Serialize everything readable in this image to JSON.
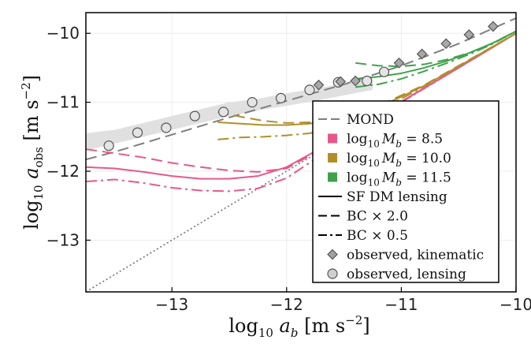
{
  "chart_data": {
    "type": "line",
    "xlabel": "log10 a_b [m s^-2]",
    "ylabel": "log10 a_obs [m s^-2]",
    "xlim": [
      -13.75,
      -10.0
    ],
    "ylim": [
      -13.75,
      -9.7
    ],
    "xticks": [
      -13,
      -12,
      -11,
      -10
    ],
    "xtick_labels": [
      "−13",
      "−12",
      "−11",
      "−10"
    ],
    "yticks": [
      -13,
      -12,
      -11,
      -10
    ],
    "ytick_labels": [
      "−13",
      "−12",
      "−11",
      "−10"
    ],
    "grid": true,
    "legend_position": "lower-right",
    "colors": {
      "mond": "#7f7f7f",
      "m85": "#e8578b",
      "m100": "#b08f2a",
      "m115": "#3fa24a",
      "one_to_one": "#808080",
      "band": "#e0e0e0"
    },
    "legend": [
      {
        "key": "mond",
        "style": "dash",
        "color": "#7f7f7f",
        "label": "MOND"
      },
      {
        "key": "m85",
        "style": "square",
        "color": "#e8578b",
        "label": "log10 M_b = 8.5",
        "prefix": "log",
        "sub": "10",
        "var": "M",
        "var_sub": "b",
        "value": " = 8.5"
      },
      {
        "key": "m100",
        "style": "square",
        "color": "#b08f2a",
        "label": "log10 M_b = 10.0",
        "prefix": "log",
        "sub": "10",
        "var": "M",
        "var_sub": "b",
        "value": " = 10.0"
      },
      {
        "key": "m115",
        "style": "square",
        "color": "#3fa24a",
        "label": "log10 M_b = 11.5",
        "prefix": "log",
        "sub": "10",
        "var": "M",
        "var_sub": "b",
        "value": " = 11.5"
      },
      {
        "key": "sf",
        "style": "solid",
        "color": "#000000",
        "label": "SF DM lensing"
      },
      {
        "key": "bc2",
        "style": "dash",
        "color": "#000000",
        "label": "BC × 2.0"
      },
      {
        "key": "bc05",
        "style": "dashdot",
        "color": "#000000",
        "label": "BC × 0.5"
      },
      {
        "key": "kin",
        "style": "diamond",
        "color": "#a0a0a0",
        "label": "observed, kinematic"
      },
      {
        "key": "lens",
        "style": "circle",
        "color": "#d0d0d0",
        "label": "observed, lensing"
      }
    ],
    "one_to_one": {
      "x": [
        -13.75,
        -10.0
      ],
      "y": [
        -13.75,
        -10.0
      ]
    },
    "mond": {
      "x": [
        -13.75,
        -13.5,
        -13.0,
        -12.5,
        -12.0,
        -11.5,
        -11.0,
        -10.5,
        -10.0
      ],
      "y": [
        -11.83,
        -11.72,
        -11.47,
        -11.22,
        -10.98,
        -10.74,
        -10.47,
        -10.15,
        -9.78
      ]
    },
    "lensing_band": {
      "x": [
        -13.75,
        -13.5,
        -13.25,
        -13.0,
        -12.75,
        -12.5,
        -12.25,
        -12.0,
        -11.75,
        -11.5,
        -11.25
      ],
      "upper": [
        -11.45,
        -11.4,
        -11.3,
        -11.2,
        -11.1,
        -11.0,
        -10.95,
        -10.87,
        -10.8,
        -10.73,
        -10.65
      ],
      "lower": [
        -11.7,
        -11.6,
        -11.5,
        -11.4,
        -11.3,
        -11.2,
        -11.12,
        -11.05,
        -10.98,
        -10.9,
        -10.82
      ]
    },
    "series": [
      {
        "name": "log10 M_b = 8.5, SF DM lensing",
        "color_key": "m85",
        "style": "solid",
        "x": [
          -13.75,
          -13.5,
          -13.25,
          -13.0,
          -12.75,
          -12.5,
          -12.25,
          -12.0,
          -11.75,
          -11.5,
          -11.25,
          -11.0,
          -10.5,
          -10.0
        ],
        "y": [
          -11.94,
          -11.96,
          -12.01,
          -12.07,
          -12.11,
          -12.11,
          -12.07,
          -11.94,
          -11.71,
          -11.46,
          -11.23,
          -10.99,
          -10.5,
          -10.0
        ]
      },
      {
        "name": "log10 M_b = 8.5, BC × 2.0",
        "color_key": "m85",
        "style": "dash",
        "x": [
          -13.75,
          -13.5,
          -13.25,
          -13.0,
          -12.75,
          -12.5,
          -12.25,
          -12.0,
          -11.75,
          -11.5,
          -11.25,
          -11.0,
          -10.5,
          -10.0
        ],
        "y": [
          -11.68,
          -11.74,
          -11.8,
          -11.88,
          -11.94,
          -11.99,
          -12.01,
          -11.96,
          -11.73,
          -11.47,
          -11.23,
          -10.99,
          -10.5,
          -10.0
        ]
      },
      {
        "name": "log10 M_b = 8.5, BC × 0.5",
        "color_key": "m85",
        "style": "dashdot",
        "x": [
          -13.75,
          -13.5,
          -13.25,
          -13.0,
          -12.75,
          -12.5,
          -12.25,
          -12.0,
          -11.75,
          -11.5,
          -11.25,
          -11.0,
          -10.5,
          -10.0
        ],
        "y": [
          -12.15,
          -12.12,
          -12.17,
          -12.24,
          -12.28,
          -12.29,
          -12.25,
          -12.1,
          -11.82,
          -11.52,
          -11.26,
          -11.0,
          -10.5,
          -10.0
        ]
      },
      {
        "name": "log10 M_b = 10.0, SF DM lensing",
        "color_key": "m100",
        "style": "solid",
        "x": [
          -12.6,
          -12.4,
          -12.2,
          -12.0,
          -11.8,
          -11.6,
          -11.4,
          -11.2,
          -11.0,
          -10.8,
          -10.5,
          -10.0
        ],
        "y": [
          -11.29,
          -11.31,
          -11.33,
          -11.33,
          -11.31,
          -11.26,
          -11.17,
          -11.07,
          -10.92,
          -10.76,
          -10.48,
          -10.0
        ]
      },
      {
        "name": "log10 M_b = 10.0, BC × 2.0",
        "color_key": "m100",
        "style": "dash",
        "x": [
          -12.6,
          -12.4,
          -12.2,
          -12.0,
          -11.8,
          -11.6,
          -11.4,
          -11.2,
          -11.0,
          -10.8,
          -10.5,
          -10.0
        ],
        "y": [
          -11.14,
          -11.21,
          -11.27,
          -11.3,
          -11.29,
          -11.24,
          -11.15,
          -11.05,
          -10.9,
          -10.75,
          -10.47,
          -10.0
        ]
      },
      {
        "name": "log10 M_b = 10.0, BC × 0.5",
        "color_key": "m100",
        "style": "dashdot",
        "x": [
          -12.6,
          -12.4,
          -12.2,
          -12.0,
          -11.8,
          -11.6,
          -11.4,
          -11.2,
          -11.0,
          -10.8,
          -10.5,
          -10.0
        ],
        "y": [
          -11.54,
          -11.51,
          -11.5,
          -11.48,
          -11.45,
          -11.38,
          -11.26,
          -11.12,
          -10.95,
          -10.77,
          -10.48,
          -10.0
        ]
      },
      {
        "name": "log10 M_b = 11.5, SF DM lensing",
        "color_key": "m115",
        "style": "solid",
        "x": [
          -11.4,
          -11.2,
          -11.0,
          -10.8,
          -10.6,
          -10.4,
          -10.2,
          -10.0
        ],
        "y": [
          -10.66,
          -10.63,
          -10.58,
          -10.5,
          -10.4,
          -10.28,
          -10.14,
          -9.97
        ]
      },
      {
        "name": "log10 M_b = 11.5, BC × 2.0",
        "color_key": "m115",
        "style": "dash",
        "x": [
          -11.4,
          -11.2,
          -11.0,
          -10.8,
          -10.6,
          -10.4,
          -10.2,
          -10.0
        ],
        "y": [
          -10.43,
          -10.47,
          -10.48,
          -10.45,
          -10.38,
          -10.28,
          -10.14,
          -9.97
        ]
      },
      {
        "name": "log10 M_b = 11.5, BC × 0.5",
        "color_key": "m115",
        "style": "dashdot",
        "x": [
          -11.4,
          -11.2,
          -11.0,
          -10.8,
          -10.6,
          -10.4,
          -10.2,
          -10.0
        ],
        "y": [
          -10.78,
          -10.74,
          -10.66,
          -10.55,
          -10.43,
          -10.3,
          -10.15,
          -9.97
        ]
      }
    ],
    "observed_kinematic": {
      "x": [
        -11.72,
        -11.53,
        -11.4,
        -11.02,
        -10.82,
        -10.61,
        -10.41,
        -10.2
      ],
      "y": [
        -10.75,
        -10.7,
        -10.69,
        -10.43,
        -10.3,
        -10.15,
        -10.02,
        -9.9
      ]
    },
    "observed_lensing": {
      "x": [
        -13.55,
        -13.3,
        -13.05,
        -12.8,
        -12.55,
        -12.3,
        -12.05,
        -11.8,
        -11.55,
        -11.3,
        -11.15
      ],
      "y": [
        -11.63,
        -11.44,
        -11.37,
        -11.2,
        -11.14,
        -11.0,
        -10.94,
        -10.82,
        -10.71,
        -10.69,
        -10.56
      ]
    }
  }
}
